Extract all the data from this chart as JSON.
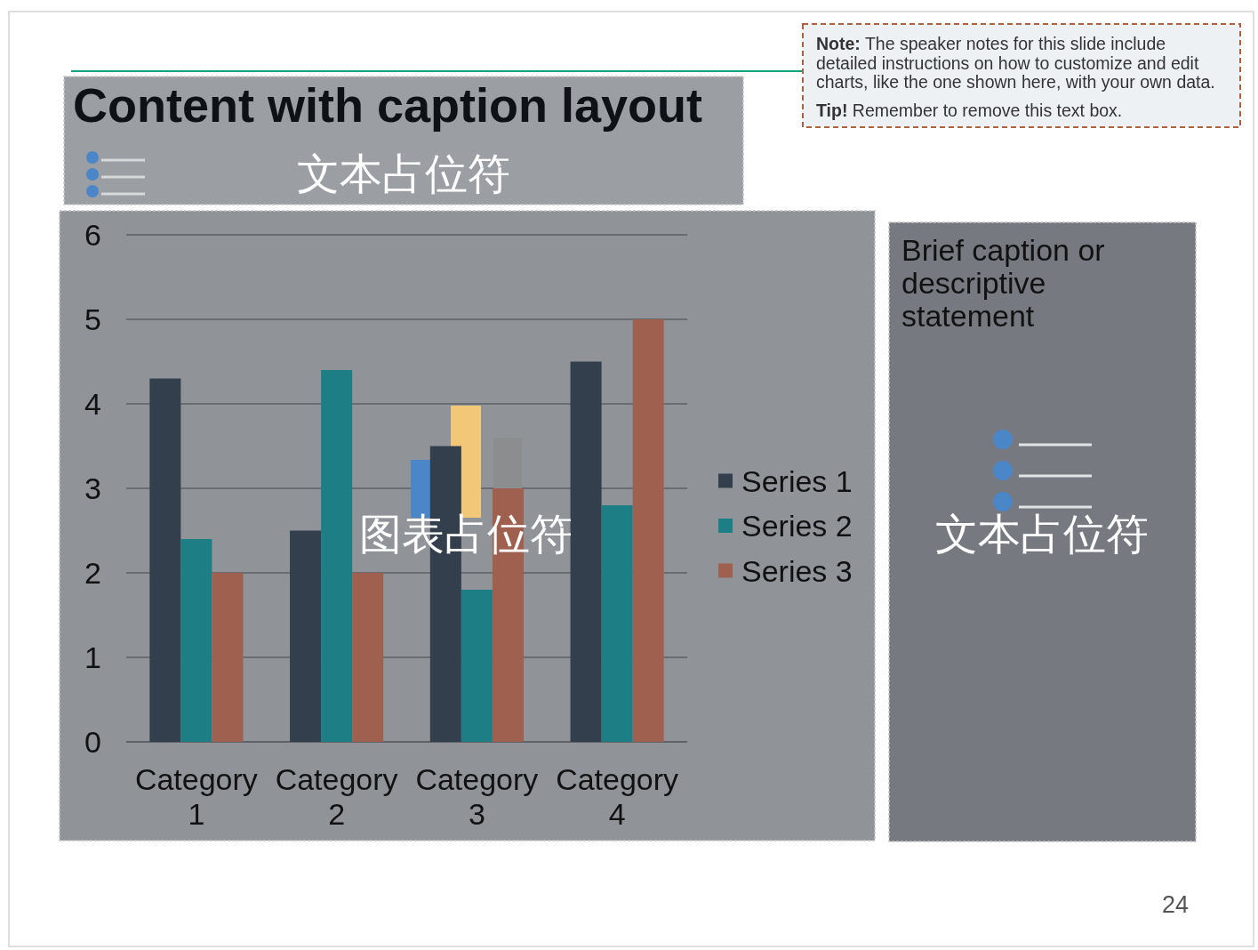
{
  "chart_data": {
    "type": "bar",
    "title": "Content with caption layout",
    "categories": [
      "Category 1",
      "Category 2",
      "Category 3",
      "Category 4"
    ],
    "series": [
      {
        "name": "Series 1",
        "color": "#333f4c",
        "values": [
          4.3,
          2.5,
          3.5,
          4.5
        ]
      },
      {
        "name": "Series 2",
        "color": "#1d7f85",
        "values": [
          2.4,
          4.4,
          1.8,
          2.8
        ]
      },
      {
        "name": "Series 3",
        "color": "#a0604f",
        "values": [
          2,
          2,
          3,
          5
        ]
      }
    ],
    "ylim": [
      0,
      6
    ],
    "yticks": [
      0,
      1,
      2,
      3,
      4,
      5,
      6
    ],
    "grid": "y",
    "legend": "right",
    "annotations": [
      "文本占位符",
      "Note: The speaker notes for this slide include detailed instructions on how to customize and edit charts, like the one shown here, with your own data.",
      "Tip! Remember to remove this text box.",
      "图表占位符",
      "Brief caption or descriptive statement",
      "文本占位符",
      "24"
    ]
  }
}
